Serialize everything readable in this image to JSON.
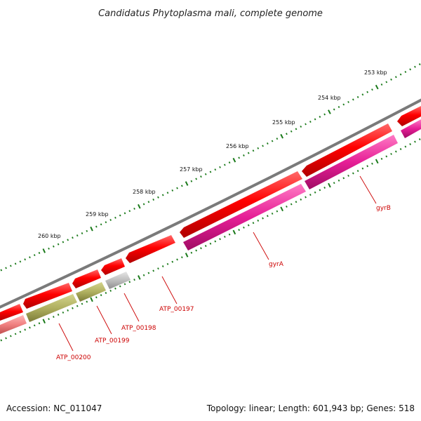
{
  "title": "Candidatus Phytoplasma mali, complete genome",
  "footer": {
    "accession": "Accession: NC_011047",
    "summary": "Topology: linear; Length: 601,943 bp; Genes: 518"
  },
  "colors": {
    "backbone": "#7a7a7a",
    "cds": "#ff0000",
    "gyrase": "#e61e96",
    "olive": "#b0b060",
    "grey_gene": "#bdbdbd",
    "pink_gene": "#f08080",
    "tick": "#1a7a1a",
    "label": "#cc0000"
  },
  "ruler": {
    "ticks": [
      {
        "label": "253 kbp"
      },
      {
        "label": "254 kbp"
      },
      {
        "label": "255 kbp"
      },
      {
        "label": "256 kbp"
      },
      {
        "label": "257 kbp"
      },
      {
        "label": "258 kbp"
      },
      {
        "label": "259 kbp"
      },
      {
        "label": "260 kbp"
      }
    ]
  },
  "genes": {
    "labeled": [
      {
        "name": "gyrB"
      },
      {
        "name": "gyrA"
      },
      {
        "name": "ATP_00197"
      },
      {
        "name": "ATP_00198"
      },
      {
        "name": "ATP_00199"
      },
      {
        "name": "ATP_00200"
      }
    ]
  }
}
